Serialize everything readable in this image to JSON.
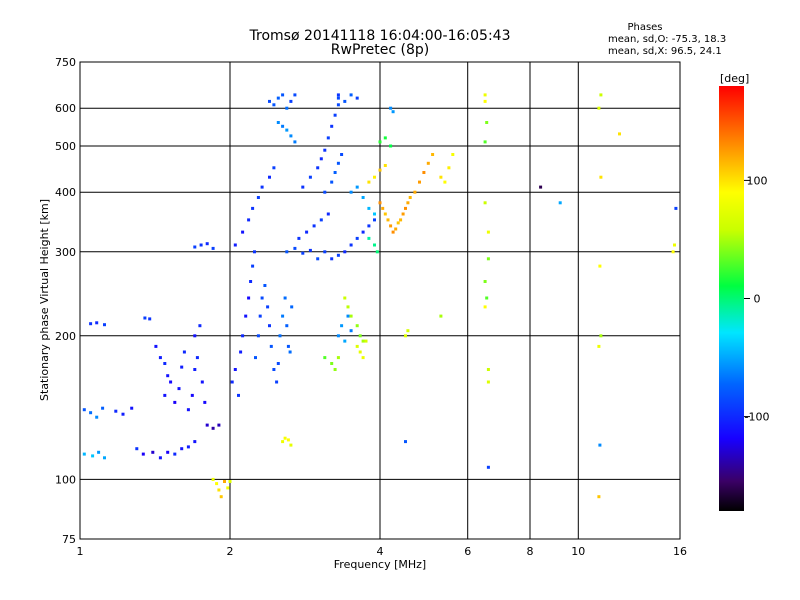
{
  "title_line1": "Tromsø 20141118 16:04:00-16:05:43",
  "title_line2": "RwPretec (8p)",
  "phases": {
    "heading": "Phases",
    "line1": "mean, sd,O: -75.3, 18.3",
    "line2": "mean, sd,X: 96.5, 24.1"
  },
  "colorbar": {
    "unit": "[deg]",
    "ticks": [
      {
        "value": 100,
        "label": "100"
      },
      {
        "value": 0,
        "label": "0"
      },
      {
        "value": -100,
        "label": "-100"
      }
    ]
  },
  "chart_data": {
    "type": "scatter",
    "xlabel": "Frequency [MHz]",
    "ylabel": "Stationary phase Virtual Height [km]",
    "x_scale": "log",
    "y_scale": "log",
    "xlim": [
      1,
      16
    ],
    "ylim": [
      75,
      750
    ],
    "clim": [
      -180,
      180
    ],
    "xticks": [
      {
        "value": 1,
        "label": "1"
      },
      {
        "value": 2,
        "label": "2"
      },
      {
        "value": 4,
        "label": "4"
      },
      {
        "value": 6,
        "label": "6"
      },
      {
        "value": 8,
        "label": "8"
      },
      {
        "value": 10,
        "label": "10"
      },
      {
        "value": 16,
        "label": "16"
      }
    ],
    "yticks": [
      {
        "value": 75,
        "label": "75"
      },
      {
        "value": 100,
        "label": "100"
      },
      {
        "value": 200,
        "label": "200"
      },
      {
        "value": 300,
        "label": "300"
      },
      {
        "value": 400,
        "label": "400"
      },
      {
        "value": 500,
        "label": "500"
      },
      {
        "value": 600,
        "label": "600"
      },
      {
        "value": 750,
        "label": "750"
      }
    ],
    "grid": true,
    "points": [
      [
        1.02,
        140,
        -80
      ],
      [
        1.05,
        138,
        -70
      ],
      [
        1.08,
        135,
        -60
      ],
      [
        1.11,
        141,
        -75
      ],
      [
        1.02,
        113,
        -45
      ],
      [
        1.06,
        112,
        -40
      ],
      [
        1.09,
        114,
        -55
      ],
      [
        1.12,
        111,
        -50
      ],
      [
        1.05,
        212,
        -95
      ],
      [
        1.08,
        213,
        -100
      ],
      [
        1.12,
        211,
        -90
      ],
      [
        1.18,
        139,
        -100
      ],
      [
        1.22,
        137,
        -105
      ],
      [
        1.27,
        141,
        -110
      ],
      [
        1.3,
        116,
        -95
      ],
      [
        1.34,
        113,
        -120
      ],
      [
        1.4,
        114,
        -130
      ],
      [
        1.45,
        111,
        -110
      ],
      [
        1.5,
        114,
        -120
      ],
      [
        1.55,
        113,
        -100
      ],
      [
        1.6,
        116,
        -110
      ],
      [
        1.65,
        117,
        -105
      ],
      [
        1.7,
        120,
        -110
      ],
      [
        1.35,
        218,
        -90
      ],
      [
        1.38,
        217,
        -95
      ],
      [
        1.42,
        190,
        -110
      ],
      [
        1.45,
        180,
        -105
      ],
      [
        1.48,
        175,
        -100
      ],
      [
        1.5,
        165,
        -110
      ],
      [
        1.52,
        160,
        -115
      ],
      [
        1.48,
        150,
        -110
      ],
      [
        1.55,
        145,
        -120
      ],
      [
        1.58,
        155,
        -110
      ],
      [
        1.6,
        172,
        -105
      ],
      [
        1.62,
        185,
        -100
      ],
      [
        1.65,
        140,
        -110
      ],
      [
        1.68,
        150,
        -115
      ],
      [
        1.7,
        170,
        -105
      ],
      [
        1.72,
        180,
        -100
      ],
      [
        1.7,
        200,
        -110
      ],
      [
        1.74,
        210,
        -100
      ],
      [
        1.76,
        160,
        -110
      ],
      [
        1.78,
        145,
        -115
      ],
      [
        1.7,
        307,
        -90
      ],
      [
        1.75,
        310,
        -95
      ],
      [
        1.8,
        312,
        -100
      ],
      [
        1.85,
        305,
        -90
      ],
      [
        1.8,
        130,
        -130
      ],
      [
        1.85,
        128,
        -140
      ],
      [
        1.9,
        130,
        -135
      ],
      [
        1.85,
        100,
        80
      ],
      [
        1.88,
        98,
        90
      ],
      [
        1.9,
        95,
        100
      ],
      [
        1.92,
        92,
        110
      ],
      [
        1.95,
        99,
        120
      ],
      [
        1.98,
        96,
        85
      ],
      [
        2.0,
        99,
        70
      ],
      [
        2.02,
        160,
        -100
      ],
      [
        2.05,
        170,
        -110
      ],
      [
        2.08,
        150,
        -95
      ],
      [
        2.1,
        185,
        -105
      ],
      [
        2.12,
        200,
        -100
      ],
      [
        2.15,
        220,
        -110
      ],
      [
        2.18,
        240,
        -115
      ],
      [
        2.2,
        260,
        -100
      ],
      [
        2.22,
        280,
        -90
      ],
      [
        2.24,
        300,
        -95
      ],
      [
        2.05,
        310,
        -105
      ],
      [
        2.12,
        330,
        -110
      ],
      [
        2.18,
        350,
        -100
      ],
      [
        2.22,
        370,
        -95
      ],
      [
        2.28,
        390,
        -90
      ],
      [
        2.32,
        410,
        -95
      ],
      [
        2.4,
        430,
        -100
      ],
      [
        2.45,
        450,
        -90
      ],
      [
        2.25,
        180,
        -80
      ],
      [
        2.28,
        200,
        -85
      ],
      [
        2.3,
        220,
        -90
      ],
      [
        2.32,
        240,
        -85
      ],
      [
        2.35,
        255,
        -80
      ],
      [
        2.38,
        230,
        -90
      ],
      [
        2.4,
        210,
        -95
      ],
      [
        2.42,
        190,
        -80
      ],
      [
        2.45,
        170,
        -85
      ],
      [
        2.48,
        160,
        -90
      ],
      [
        2.5,
        175,
        -85
      ],
      [
        2.52,
        200,
        -70
      ],
      [
        2.55,
        220,
        -65
      ],
      [
        2.58,
        240,
        -70
      ],
      [
        2.6,
        210,
        -75
      ],
      [
        2.62,
        190,
        -80
      ],
      [
        2.64,
        185,
        -70
      ],
      [
        2.66,
        230,
        -72
      ],
      [
        2.55,
        120,
        80
      ],
      [
        2.58,
        122,
        85
      ],
      [
        2.62,
        121,
        90
      ],
      [
        2.65,
        118,
        75
      ],
      [
        2.4,
        620,
        -85
      ],
      [
        2.45,
        610,
        -80
      ],
      [
        2.5,
        630,
        -75
      ],
      [
        2.55,
        640,
        -80
      ],
      [
        2.6,
        600,
        -70
      ],
      [
        2.65,
        620,
        -90
      ],
      [
        2.7,
        640,
        -85
      ],
      [
        2.5,
        560,
        -60
      ],
      [
        2.55,
        550,
        -65
      ],
      [
        2.6,
        540,
        -55
      ],
      [
        2.65,
        525,
        -60
      ],
      [
        2.7,
        510,
        -65
      ],
      [
        2.6,
        300,
        -80
      ],
      [
        2.7,
        305,
        -85
      ],
      [
        2.8,
        298,
        -90
      ],
      [
        2.9,
        302,
        -95
      ],
      [
        3.0,
        290,
        -85
      ],
      [
        3.1,
        300,
        -90
      ],
      [
        2.75,
        320,
        -95
      ],
      [
        2.85,
        330,
        -100
      ],
      [
        2.95,
        340,
        -95
      ],
      [
        3.05,
        350,
        -90
      ],
      [
        3.15,
        360,
        -100
      ],
      [
        2.8,
        410,
        -95
      ],
      [
        2.9,
        430,
        -90
      ],
      [
        3.0,
        450,
        -95
      ],
      [
        3.05,
        470,
        -100
      ],
      [
        3.1,
        490,
        -95
      ],
      [
        3.15,
        520,
        -90
      ],
      [
        3.2,
        550,
        -95
      ],
      [
        3.25,
        580,
        -90
      ],
      [
        3.3,
        610,
        -85
      ],
      [
        3.3,
        640,
        -95
      ],
      [
        3.1,
        400,
        -85
      ],
      [
        3.2,
        420,
        -80
      ],
      [
        3.25,
        440,
        -75
      ],
      [
        3.3,
        460,
        -80
      ],
      [
        3.35,
        480,
        -85
      ],
      [
        3.2,
        290,
        -95
      ],
      [
        3.3,
        295,
        -90
      ],
      [
        3.4,
        300,
        -100
      ],
      [
        3.5,
        310,
        -95
      ],
      [
        3.6,
        320,
        -90
      ],
      [
        3.7,
        330,
        -100
      ],
      [
        3.8,
        340,
        -95
      ],
      [
        3.9,
        350,
        -90
      ],
      [
        3.3,
        200,
        -60
      ],
      [
        3.35,
        210,
        -55
      ],
      [
        3.4,
        195,
        -50
      ],
      [
        3.45,
        220,
        -60
      ],
      [
        3.5,
        205,
        -65
      ],
      [
        3.2,
        175,
        40
      ],
      [
        3.25,
        170,
        45
      ],
      [
        3.3,
        180,
        50
      ],
      [
        3.1,
        180,
        30
      ],
      [
        3.4,
        240,
        60
      ],
      [
        3.45,
        230,
        55
      ],
      [
        3.5,
        220,
        50
      ],
      [
        3.6,
        210,
        45
      ],
      [
        3.65,
        200,
        40
      ],
      [
        3.7,
        195,
        50
      ],
      [
        3.6,
        190,
        70
      ],
      [
        3.65,
        185,
        75
      ],
      [
        3.7,
        180,
        80
      ],
      [
        3.75,
        195,
        65
      ],
      [
        3.3,
        630,
        -85
      ],
      [
        3.4,
        620,
        -80
      ],
      [
        3.5,
        640,
        -75
      ],
      [
        3.6,
        630,
        -90
      ],
      [
        3.5,
        400,
        -60
      ],
      [
        3.6,
        410,
        -55
      ],
      [
        3.7,
        390,
        -50
      ],
      [
        3.8,
        370,
        -45
      ],
      [
        3.9,
        360,
        -40
      ],
      [
        4.0,
        380,
        130
      ],
      [
        4.05,
        370,
        120
      ],
      [
        4.1,
        360,
        110
      ],
      [
        4.15,
        350,
        115
      ],
      [
        4.2,
        340,
        125
      ],
      [
        4.25,
        330,
        130
      ],
      [
        4.3,
        335,
        120
      ],
      [
        4.35,
        345,
        110
      ],
      [
        4.4,
        350,
        115
      ],
      [
        4.45,
        360,
        125
      ],
      [
        4.5,
        370,
        130
      ],
      [
        4.55,
        380,
        120
      ],
      [
        4.6,
        390,
        115
      ],
      [
        4.7,
        400,
        120
      ],
      [
        4.8,
        420,
        125
      ],
      [
        4.9,
        440,
        130
      ],
      [
        5.0,
        460,
        120
      ],
      [
        5.1,
        480,
        115
      ],
      [
        3.8,
        420,
        100
      ],
      [
        3.9,
        430,
        95
      ],
      [
        4.0,
        445,
        110
      ],
      [
        4.1,
        455,
        100
      ],
      [
        4.0,
        510,
        20
      ],
      [
        4.1,
        520,
        15
      ],
      [
        4.2,
        500,
        10
      ],
      [
        3.8,
        320,
        -10
      ],
      [
        3.9,
        310,
        -5
      ],
      [
        3.95,
        300,
        0
      ],
      [
        4.2,
        600,
        -60
      ],
      [
        4.25,
        590,
        -55
      ],
      [
        4.5,
        200,
        70
      ],
      [
        4.55,
        205,
        65
      ],
      [
        4.5,
        120,
        -80
      ],
      [
        6.5,
        620,
        90
      ],
      [
        6.5,
        640,
        80
      ],
      [
        6.5,
        260,
        40
      ],
      [
        6.6,
        170,
        60
      ],
      [
        6.6,
        160,
        70
      ],
      [
        6.6,
        106,
        -90
      ],
      [
        6.55,
        560,
        40
      ],
      [
        6.5,
        510,
        30
      ],
      [
        6.5,
        380,
        60
      ],
      [
        6.6,
        330,
        80
      ],
      [
        6.6,
        290,
        40
      ],
      [
        6.55,
        240,
        30
      ],
      [
        6.5,
        230,
        90
      ],
      [
        5.3,
        430,
        100
      ],
      [
        5.4,
        420,
        90
      ],
      [
        5.5,
        450,
        95
      ],
      [
        5.6,
        480,
        85
      ],
      [
        5.3,
        220,
        50
      ],
      [
        8.4,
        410,
        -160
      ],
      [
        9.2,
        380,
        -50
      ],
      [
        11.1,
        640,
        60
      ],
      [
        11.0,
        600,
        70
      ],
      [
        11.1,
        430,
        100
      ],
      [
        11.05,
        280,
        90
      ],
      [
        11.1,
        200,
        50
      ],
      [
        11.0,
        190,
        80
      ],
      [
        11.05,
        118,
        -60
      ],
      [
        11.0,
        92,
        110
      ],
      [
        12.1,
        530,
        100
      ],
      [
        15.7,
        370,
        -90
      ],
      [
        15.6,
        310,
        80
      ],
      [
        15.5,
        300,
        90
      ]
    ]
  }
}
